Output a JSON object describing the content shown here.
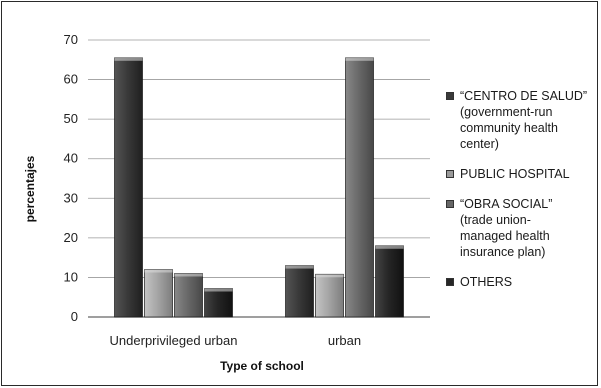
{
  "chart_data": {
    "type": "bar",
    "title": "",
    "xlabel": "Type of school",
    "ylabel": "percentajes",
    "ylim": [
      0,
      70
    ],
    "yticks": [
      0,
      10,
      20,
      30,
      40,
      50,
      60,
      70
    ],
    "grid": true,
    "legend_position": "right",
    "categories": [
      "Underprivileged urban",
      "urban"
    ],
    "series": [
      {
        "name": "“CENTRO DE SALUD” (government-run community health center)",
        "values": [
          65.5,
          13
        ],
        "color": "#3a3a3a"
      },
      {
        "name": "PUBLIC HOSPITAL",
        "values": [
          12,
          10.8
        ],
        "color": "#9a9a9a"
      },
      {
        "name": "“OBRA SOCIAL” (trade union-managed health insurance plan)",
        "values": [
          11,
          65.5
        ],
        "color": "#666666"
      },
      {
        "name": "OTHERS",
        "values": [
          7.2,
          18
        ],
        "color": "#262626"
      }
    ]
  },
  "legend": {
    "items": [
      {
        "lines": [
          "“CENTRO DE SALUD”",
          "(government-run",
          "community health",
          "center)"
        ],
        "color": "#3a3a3a"
      },
      {
        "lines": [
          "PUBLIC HOSPITAL"
        ],
        "color": "#9a9a9a"
      },
      {
        "lines": [
          "“OBRA SOCIAL”",
          "(trade union-",
          "managed health",
          "insurance plan)"
        ],
        "color": "#666666"
      },
      {
        "lines": [
          "OTHERS"
        ],
        "color": "#262626"
      }
    ]
  }
}
